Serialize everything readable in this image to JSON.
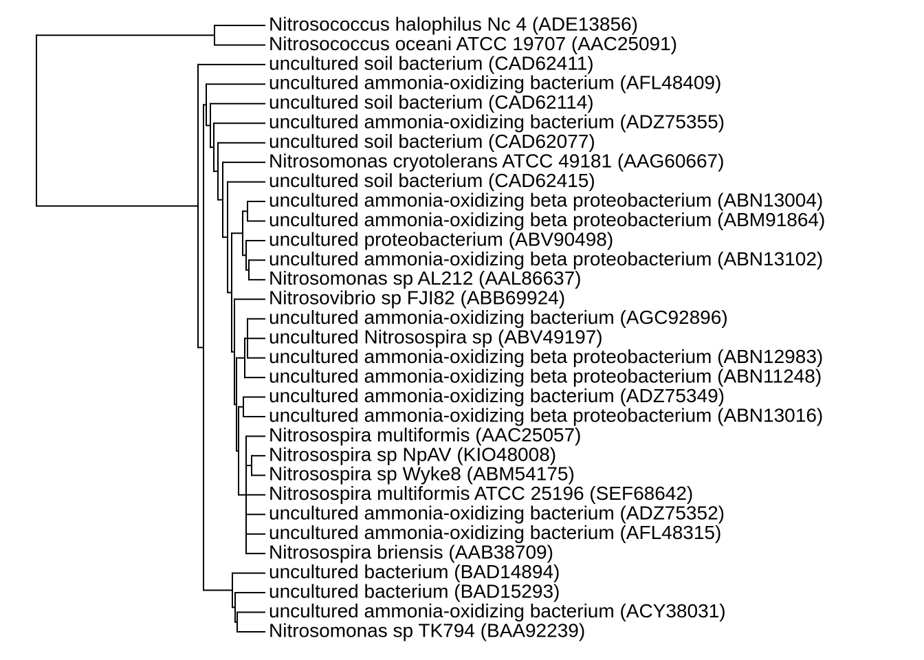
{
  "style": {
    "line_color": "#000000",
    "background": "#ffffff"
  },
  "tree": {
    "leaves": [
      "Nitrosococcus halophilus Nc 4 (ADE13856)",
      "Nitrosococcus oceani ATCC 19707 (AAC25091)",
      "uncultured soil bacterium (CAD62411)",
      "uncultured ammonia-oxidizing bacterium (AFL48409)",
      "uncultured soil bacterium (CAD62114)",
      "uncultured ammonia-oxidizing bacterium (ADZ75355)",
      "uncultured soil bacterium (CAD62077)",
      "Nitrosomonas cryotolerans ATCC 49181 (AAG60667)",
      "uncultured soil bacterium (CAD62415)",
      "uncultured ammonia-oxidizing beta proteobacterium (ABN13004)",
      "uncultured ammonia-oxidizing beta proteobacterium (ABM91864)",
      "uncultured proteobacterium (ABV90498)",
      "uncultured ammonia-oxidizing beta proteobacterium (ABN13102)",
      "Nitrosomonas sp  AL212 (AAL86637)",
      "Nitrosovibrio sp  FJI82 (ABB69924)",
      "uncultured ammonia-oxidizing bacterium (AGC92896)",
      "uncultured Nitrosospira sp  (ABV49197)",
      "uncultured ammonia-oxidizing beta proteobacterium (ABN12983)",
      "uncultured ammonia-oxidizing beta proteobacterium (ABN11248)",
      "uncultured ammonia-oxidizing bacterium (ADZ75349)",
      "uncultured ammonia-oxidizing beta proteobacterium (ABN13016)",
      "Nitrosospira multiformis (AAC25057)",
      "Nitrosospira sp  NpAV (KIO48008)",
      "Nitrosospira sp  Wyke8 (ABM54175)",
      "Nitrosospira multiformis ATCC 25196 (SEF68642)",
      "uncultured ammonia-oxidizing bacterium (ADZ75352)",
      "uncultured ammonia-oxidizing bacterium (AFL48315)",
      "Nitrosospira briensis (AAB38709)",
      "uncultured bacterium (BAD14894)",
      "uncultured bacterium (BAD15293)",
      "uncultured ammonia-oxidizing bacterium (ACY38031)",
      "Nitrosomonas sp  TK794 (BAA92239)"
    ]
  }
}
